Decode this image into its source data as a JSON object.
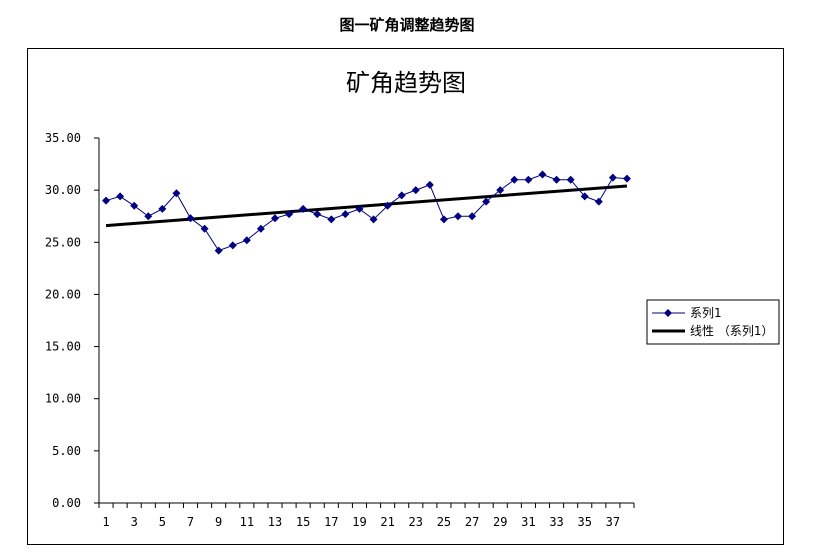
{
  "doc_title": "图一矿角调整趋势图",
  "chart_data": {
    "type": "line",
    "title": "矿角趋势图",
    "xlabel": "",
    "ylabel": "",
    "x": [
      1,
      2,
      3,
      4,
      5,
      6,
      7,
      8,
      9,
      10,
      11,
      12,
      13,
      14,
      15,
      16,
      17,
      18,
      19,
      20,
      21,
      22,
      23,
      24,
      25,
      26,
      27,
      28,
      29,
      30,
      31,
      32,
      33,
      34,
      35,
      36,
      37,
      38
    ],
    "x_tick_labels": [
      "1",
      "3",
      "5",
      "7",
      "9",
      "11",
      "13",
      "15",
      "17",
      "19",
      "21",
      "23",
      "25",
      "27",
      "29",
      "31",
      "33",
      "35",
      "37"
    ],
    "y_tick_labels": [
      "0.00",
      "5.00",
      "10.00",
      "15.00",
      "20.00",
      "25.00",
      "30.00",
      "35.00"
    ],
    "ylim": [
      0,
      35
    ],
    "grid": false,
    "legend_position": "right",
    "series": [
      {
        "name": "系列1",
        "color": "#000080",
        "marker": "diamond",
        "values": [
          29.0,
          29.4,
          28.5,
          27.5,
          28.2,
          29.7,
          27.3,
          26.3,
          24.2,
          24.7,
          25.2,
          26.3,
          27.3,
          27.7,
          28.2,
          27.7,
          27.2,
          27.7,
          28.2,
          27.2,
          28.5,
          29.5,
          30.0,
          30.5,
          27.2,
          27.5,
          27.5,
          28.9,
          30.0,
          31.0,
          31.0,
          31.5,
          31.0,
          31.0,
          29.4,
          28.9,
          31.2,
          31.1
        ]
      }
    ],
    "trendline": {
      "name": "线性 （系列1）",
      "color": "#000000",
      "type": "linear",
      "start": 26.6,
      "end": 30.4
    }
  }
}
